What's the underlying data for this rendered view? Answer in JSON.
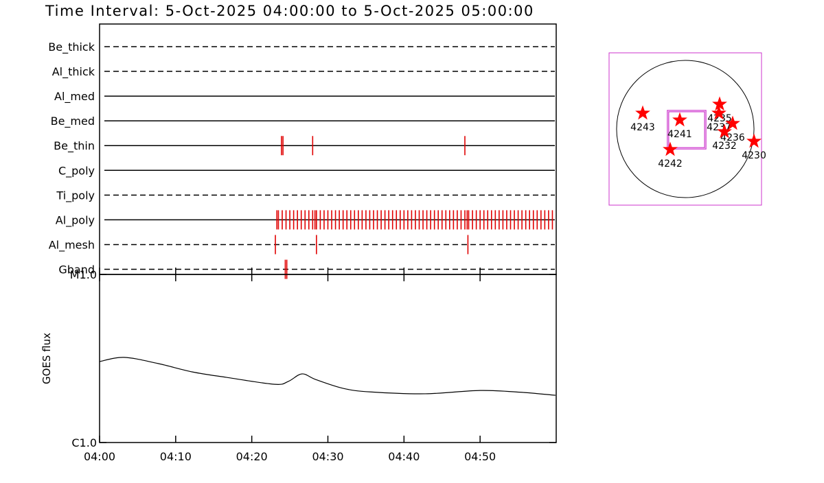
{
  "title": "Time Interval:  5-Oct-2025 04:00:00 to  5-Oct-2025 05:00:00",
  "chart_data": [
    {
      "type": "timeline",
      "xlim": [
        0,
        60
      ],
      "color": "#e00000",
      "series": [
        {
          "name": "Be_thick",
          "style": "dashed",
          "events": []
        },
        {
          "name": "Al_thick",
          "style": "dashed",
          "events": []
        },
        {
          "name": "Al_med",
          "style": "solid",
          "events": []
        },
        {
          "name": "Be_med",
          "style": "solid",
          "events": []
        },
        {
          "name": "Be_thin",
          "style": "solid",
          "events": [
            23.9,
            24.1,
            28.0,
            48.0
          ]
        },
        {
          "name": "C_poly",
          "style": "solid",
          "events": []
        },
        {
          "name": "Ti_poly",
          "style": "dashed",
          "events": []
        },
        {
          "name": "Al_poly",
          "style": "solid",
          "events": [
            23.3,
            23.5,
            24,
            24.5,
            25,
            25.5,
            26,
            26.5,
            27,
            27.5,
            28,
            28.3,
            28.5,
            29,
            29.5,
            30,
            30.5,
            31,
            31.5,
            32,
            32.5,
            33,
            33.5,
            34,
            34.5,
            35,
            35.5,
            36,
            36.5,
            37,
            37.5,
            38,
            38.5,
            39,
            39.5,
            40,
            40.5,
            41,
            41.5,
            42,
            42.5,
            43,
            43.5,
            44,
            44.5,
            45,
            45.5,
            46,
            46.5,
            47,
            47.5,
            48,
            48.3,
            48.5,
            49,
            49.5,
            50,
            50.5,
            51,
            51.5,
            52,
            52.5,
            53,
            53.5,
            54,
            54.5,
            55,
            55.5,
            56,
            56.5,
            57,
            57.5,
            58,
            58.5,
            59,
            59.5
          ]
        },
        {
          "name": "Al_mesh",
          "style": "dashed",
          "events": [
            23.1,
            28.5,
            48.4
          ]
        },
        {
          "name": "Gband",
          "style": "dashed",
          "events": [
            24.4,
            24.6
          ]
        }
      ]
    },
    {
      "type": "line",
      "ylabel": "GOES flux",
      "log_scale": true,
      "color": "#000000",
      "xlim": [
        0,
        60
      ],
      "xticks": [
        {
          "value": 0,
          "label": "04:00"
        },
        {
          "value": 10,
          "label": "04:10"
        },
        {
          "value": 20,
          "label": "04:20"
        },
        {
          "value": 30,
          "label": "04:30"
        },
        {
          "value": 40,
          "label": "04:40"
        },
        {
          "value": 50,
          "label": "04:50"
        }
      ],
      "ylim": [
        1e-06,
        1e-05
      ],
      "yticks": [
        {
          "value": 1e-06,
          "label": "C1.0"
        },
        {
          "value": 1e-05,
          "label": "M1.0"
        }
      ],
      "x": [
        0,
        3.2,
        7.7,
        12.2,
        16.7,
        23.0,
        24.8,
        26.6,
        28.4,
        32.0,
        35.6,
        42.8,
        50.0,
        55.4,
        59.9
      ],
      "values": [
        3.03e-06,
        3.21e-06,
        2.95e-06,
        2.63e-06,
        2.44e-06,
        2.22e-06,
        2.31e-06,
        2.56e-06,
        2.37e-06,
        2.1e-06,
        2e-06,
        1.95e-06,
        2.04e-06,
        1.99e-06,
        1.91e-06
      ]
    },
    {
      "type": "scatter",
      "xlim": [
        -1065,
        1065
      ],
      "ylim": [
        -1065,
        1065
      ],
      "disk_radius": 960,
      "color": "#ff0000",
      "box_color": "#cc33cc",
      "fov": {
        "x": 19,
        "y": -10,
        "width": 540,
        "height": 540
      },
      "labels": [
        "4243",
        "4241",
        "4235",
        "4237",
        "4236",
        "4232",
        "4230",
        "4242"
      ],
      "x": [
        -595,
        -77,
        480,
        470,
        662,
        547,
        960,
        -211
      ],
      "values": [
        221,
        125,
        346,
        221,
        77,
        -38,
        -173,
        -288
      ]
    }
  ]
}
